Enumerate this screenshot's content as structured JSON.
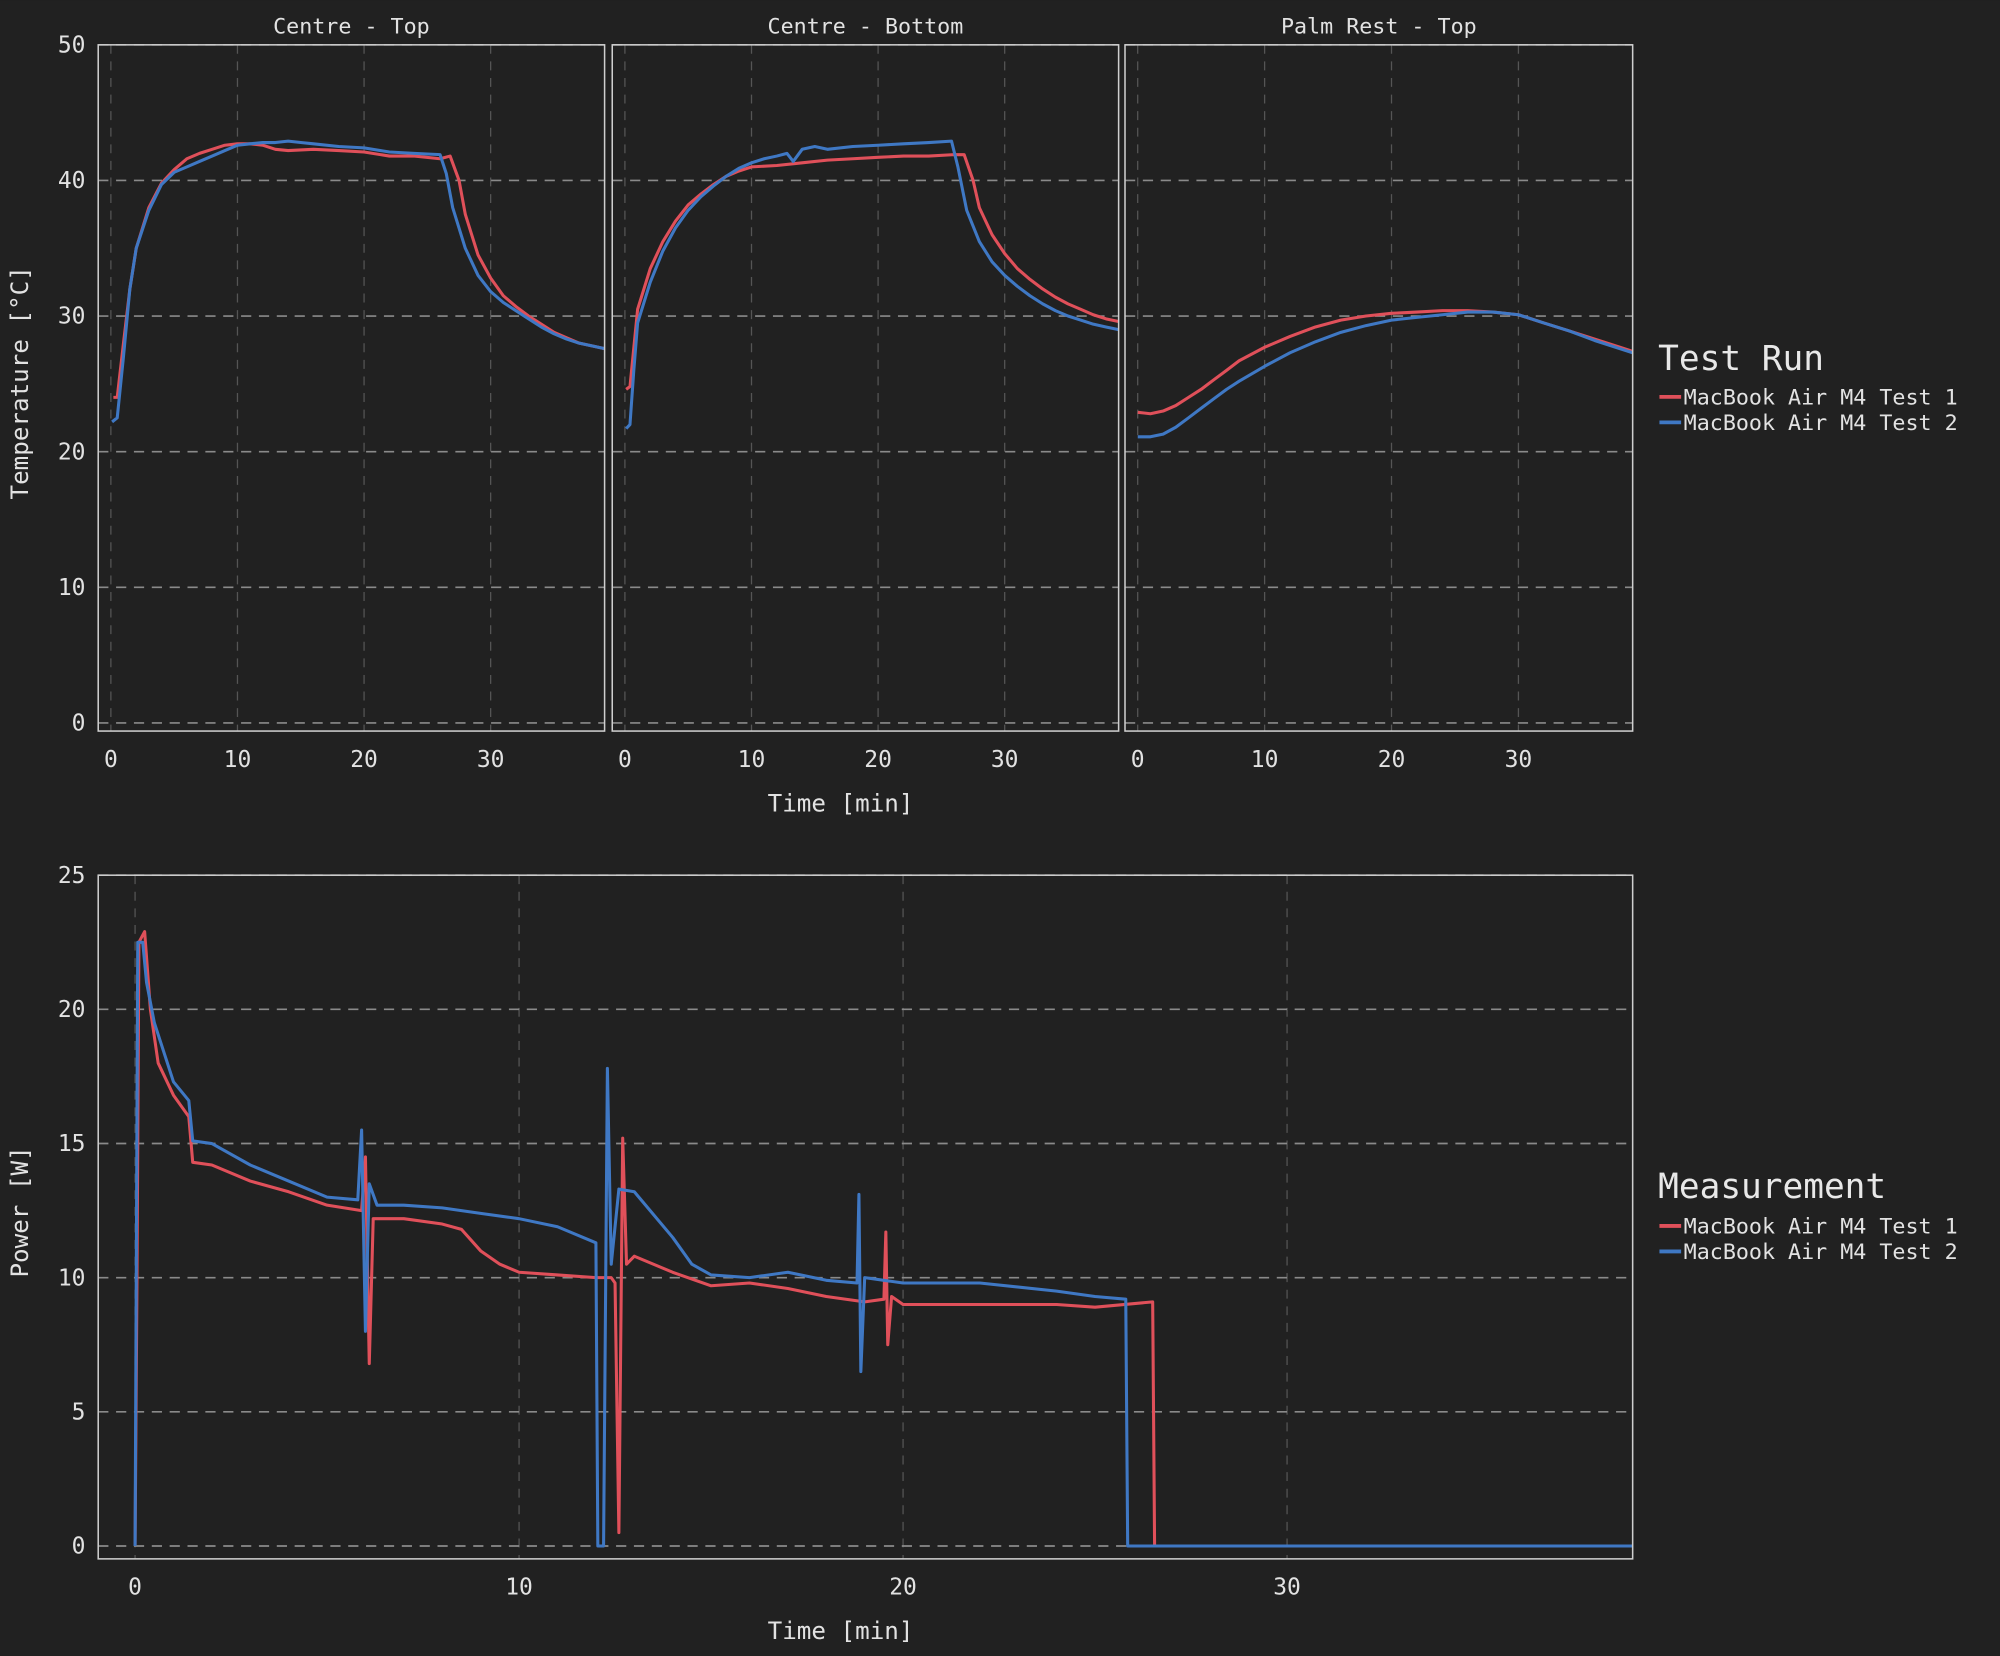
{
  "colors": {
    "background": "#212121",
    "test1": "#e0505a",
    "test2": "#3f78c4"
  },
  "chart_data": [
    {
      "type": "line",
      "panels": [
        {
          "title": "Centre - Top",
          "series": [
            {
              "name": "MacBook Air M4 Test 1",
              "x": [
                0.2,
                0.5,
                1,
                1.5,
                2,
                3,
                4,
                5,
                6,
                7,
                8,
                9,
                10,
                11,
                12,
                13,
                14,
                16,
                18,
                20,
                22,
                24,
                26,
                26.8,
                27.5,
                28,
                29,
                30,
                31,
                32,
                33,
                34,
                35,
                36,
                37,
                38,
                39
              ],
              "y": [
                24,
                24,
                28,
                32,
                35,
                38,
                39.8,
                40.8,
                41.6,
                42,
                42.3,
                42.6,
                42.7,
                42.7,
                42.6,
                42.3,
                42.2,
                42.3,
                42.2,
                42.1,
                41.8,
                41.8,
                41.6,
                41.8,
                40,
                37.5,
                34.5,
                32.8,
                31.5,
                30.7,
                30,
                29.4,
                28.8,
                28.4,
                28,
                27.8,
                27.6
              ]
            },
            {
              "name": "MacBook Air M4 Test 2",
              "x": [
                0.1,
                0.5,
                1,
                1.5,
                2,
                3,
                4,
                5,
                6,
                7,
                8,
                9,
                10,
                11,
                12,
                13,
                14,
                15,
                16,
                18,
                20,
                22,
                24,
                26,
                26.5,
                27,
                28,
                29,
                30,
                31,
                32,
                33,
                34,
                35,
                36,
                37,
                38,
                39
              ],
              "y": [
                22.2,
                22.5,
                27,
                32,
                35,
                37.8,
                39.7,
                40.6,
                41,
                41.4,
                41.8,
                42.2,
                42.6,
                42.7,
                42.8,
                42.8,
                42.9,
                42.8,
                42.7,
                42.5,
                42.4,
                42.1,
                42,
                41.9,
                40.5,
                38,
                35,
                33,
                31.8,
                31,
                30.4,
                29.8,
                29.2,
                28.7,
                28.3,
                28,
                27.8,
                27.6
              ]
            }
          ]
        },
        {
          "title": "Centre - Bottom",
          "series": [
            {
              "name": "MacBook Air M4 Test 1",
              "x": [
                0.1,
                0.4,
                1,
                2,
                3,
                4,
                5,
                6,
                7,
                8,
                9,
                10,
                12,
                14,
                16,
                18,
                20,
                22,
                24,
                26,
                26.8,
                27.5,
                28,
                29,
                30,
                31,
                32,
                33,
                34,
                35,
                36,
                37,
                38,
                39
              ],
              "y": [
                24.6,
                24.8,
                30.5,
                33.5,
                35.5,
                37,
                38.2,
                39,
                39.7,
                40.3,
                40.7,
                41,
                41.1,
                41.3,
                41.5,
                41.6,
                41.7,
                41.8,
                41.8,
                41.9,
                41.9,
                40,
                38,
                36,
                34.6,
                33.5,
                32.7,
                32,
                31.4,
                30.9,
                30.5,
                30.1,
                29.8,
                29.6
              ]
            },
            {
              "name": "MacBook Air M4 Test 2",
              "x": [
                0.1,
                0.4,
                0.7,
                1,
                2,
                3,
                4,
                5,
                6,
                7,
                8,
                9,
                10,
                11,
                12,
                12.8,
                13.3,
                14,
                15,
                16,
                18,
                20,
                22,
                24,
                25.8,
                26.3,
                27,
                28,
                29,
                30,
                31,
                32,
                33,
                34,
                35,
                36,
                37,
                38,
                39
              ],
              "y": [
                21.7,
                22,
                26,
                29.5,
                32.5,
                34.8,
                36.5,
                37.8,
                38.8,
                39.6,
                40.3,
                40.9,
                41.3,
                41.6,
                41.8,
                42,
                41.4,
                42.3,
                42.5,
                42.3,
                42.5,
                42.6,
                42.7,
                42.8,
                42.9,
                41,
                37.8,
                35.5,
                34,
                33,
                32.2,
                31.5,
                30.9,
                30.4,
                30,
                29.7,
                29.4,
                29.2,
                29
              ]
            }
          ]
        },
        {
          "title": "Palm Rest - Top",
          "series": [
            {
              "name": "MacBook Air M4 Test 1",
              "x": [
                0,
                1,
                2,
                3,
                4,
                5,
                6,
                7,
                8,
                9,
                10,
                12,
                14,
                16,
                18,
                20,
                22,
                24,
                26,
                28,
                30,
                32,
                34,
                36,
                38,
                39
              ],
              "y": [
                22.9,
                22.8,
                23,
                23.4,
                24,
                24.6,
                25.3,
                26,
                26.7,
                27.2,
                27.7,
                28.5,
                29.2,
                29.7,
                30,
                30.2,
                30.3,
                30.4,
                30.4,
                30.3,
                30.1,
                29.5,
                28.9,
                28.3,
                27.7,
                27.4
              ]
            },
            {
              "name": "MacBook Air M4 Test 2",
              "x": [
                0,
                1,
                2,
                3,
                4,
                5,
                6,
                7,
                8,
                10,
                12,
                14,
                16,
                18,
                20,
                22,
                24,
                26,
                28,
                30,
                32,
                34,
                36,
                38,
                39
              ],
              "y": [
                21.1,
                21.1,
                21.3,
                21.8,
                22.5,
                23.2,
                23.9,
                24.6,
                25.2,
                26.3,
                27.3,
                28.1,
                28.8,
                29.3,
                29.7,
                29.9,
                30.1,
                30.3,
                30.3,
                30.1,
                29.5,
                28.9,
                28.2,
                27.6,
                27.3
              ]
            }
          ]
        }
      ],
      "xlabel": "Time [min]",
      "ylabel": "Temperature [°C]",
      "xlim": [
        -1,
        39
      ],
      "ylim": [
        -0.6,
        50
      ],
      "xticks": [
        0,
        10,
        20,
        30
      ],
      "yticks": [
        0,
        10,
        20,
        30,
        40,
        50
      ],
      "grid": true,
      "legend": {
        "title": "Test Run",
        "position": "right",
        "items": [
          "MacBook Air M4 Test 1",
          "MacBook Air M4 Test 2"
        ]
      }
    },
    {
      "type": "line",
      "series": [
        {
          "name": "MacBook Air M4 Test 1",
          "x": [
            0,
            0.05,
            0.1,
            0.25,
            0.4,
            0.6,
            1,
            1.4,
            1.5,
            2,
            3,
            4,
            5,
            5.9,
            6,
            6.1,
            6.2,
            7,
            8,
            8.5,
            9,
            9.5,
            10,
            11,
            12,
            12.4,
            12.5,
            12.6,
            12.7,
            12.8,
            13,
            14,
            15,
            16,
            17,
            18,
            19,
            19.5,
            19.55,
            19.6,
            19.7,
            20,
            22,
            24,
            25,
            26.5,
            26.55,
            28,
            39
          ],
          "y": [
            0,
            10,
            22.5,
            22.9,
            20,
            18,
            16.8,
            16,
            14.3,
            14.2,
            13.6,
            13.2,
            12.7,
            12.5,
            14.5,
            6.8,
            12.2,
            12.2,
            12,
            11.8,
            11,
            10.5,
            10.2,
            10.1,
            10,
            10,
            9.8,
            0.5,
            15.2,
            10.5,
            10.8,
            10.2,
            9.7,
            9.8,
            9.6,
            9.3,
            9.1,
            9.2,
            11.7,
            7.5,
            9.3,
            9,
            9,
            9,
            8.9,
            9.1,
            0,
            0,
            0
          ]
        },
        {
          "name": "MacBook Air M4 Test 2",
          "x": [
            0,
            0.07,
            0.2,
            0.3,
            0.5,
            1,
            1.4,
            1.5,
            2,
            3,
            4,
            5,
            5.8,
            5.9,
            6,
            6.1,
            6.3,
            7,
            8,
            9,
            10,
            11,
            12,
            12.05,
            12.2,
            12.3,
            12.4,
            12.6,
            13,
            14,
            14.5,
            15,
            16,
            17,
            18,
            18.8,
            18.85,
            18.9,
            19,
            20,
            22,
            24,
            25,
            25.8,
            25.85,
            39
          ],
          "y": [
            0,
            22.5,
            22.5,
            21,
            19.5,
            17.3,
            16.6,
            15.1,
            15,
            14.2,
            13.6,
            13,
            12.9,
            15.5,
            8,
            13.5,
            12.7,
            12.7,
            12.6,
            12.4,
            12.2,
            11.9,
            11.3,
            0,
            0,
            17.8,
            10.5,
            13.3,
            13.2,
            11.5,
            10.5,
            10.1,
            10,
            10.2,
            9.9,
            9.8,
            13.1,
            6.5,
            10,
            9.8,
            9.8,
            9.5,
            9.3,
            9.2,
            0,
            0
          ]
        }
      ],
      "xlabel": "Time [min]",
      "ylabel": "Power [W]",
      "xlim": [
        -0.96,
        39
      ],
      "ylim": [
        -0.48,
        25
      ],
      "xticks": [
        0,
        10,
        20,
        30
      ],
      "yticks": [
        0,
        5,
        10,
        15,
        20,
        25
      ],
      "grid": true,
      "legend": {
        "title": "Measurement",
        "position": "right",
        "items": [
          "MacBook Air M4 Test 1",
          "MacBook Air M4 Test 2"
        ]
      }
    }
  ]
}
